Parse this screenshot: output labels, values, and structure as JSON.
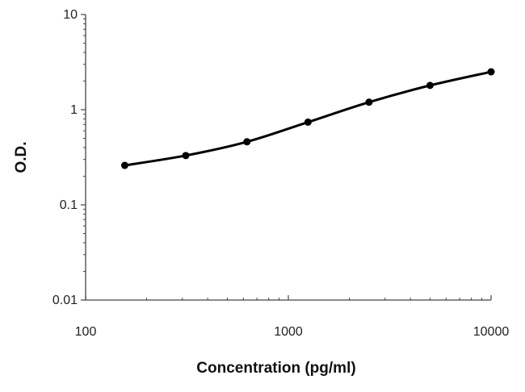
{
  "chart_data": {
    "type": "scatter",
    "title": "",
    "xlabel": "Concentration (pg/ml)",
    "ylabel": "O.D.",
    "x_scale": "log",
    "y_scale": "log",
    "xlim": [
      100,
      10000
    ],
    "ylim": [
      0.01,
      10
    ],
    "x_ticks": [
      "100",
      "1000",
      "10000"
    ],
    "y_ticks": [
      "0.01",
      "0.1",
      "1",
      "10"
    ],
    "grid": false,
    "legend": "none",
    "series": [
      {
        "x": [
          156,
          312,
          625,
          1250,
          2500,
          5000,
          10000
        ],
        "y": [
          0.26,
          0.33,
          0.46,
          0.74,
          1.2,
          1.8,
          2.5
        ],
        "fit_curve": true
      }
    ],
    "colors": {
      "curve": "#000000",
      "axis": "#444444",
      "text": "#222222"
    }
  }
}
